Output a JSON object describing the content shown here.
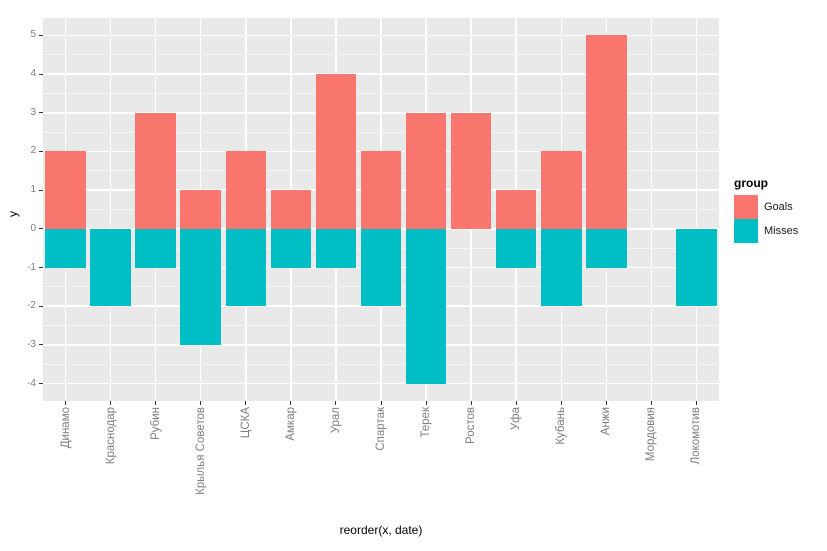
{
  "chart_data": {
    "type": "bar",
    "title": "",
    "xlabel": "reorder(x, date)",
    "ylabel": "y",
    "categories": [
      "Динамо",
      "Краснодар",
      "Рубин",
      "Крылья Советов",
      "ЦСКА",
      "Амкар",
      "Урал",
      "Спартак",
      "Терек",
      "Ростов",
      "Уфа",
      "Кубань",
      "Анжи",
      "Мордовия",
      "Локомотив"
    ],
    "series": [
      {
        "name": "Goals",
        "color": "#F8766D",
        "values": [
          2,
          0,
          3,
          1,
          2,
          1,
          4,
          2,
          3,
          3,
          1,
          2,
          5,
          0,
          0
        ]
      },
      {
        "name": "Misses",
        "color": "#00BFC4",
        "values": [
          -1,
          -2,
          -1,
          -3,
          -2,
          -1,
          -1,
          -2,
          -4,
          0,
          -1,
          -2,
          -1,
          0,
          -2
        ]
      }
    ],
    "y_ticks": [
      5,
      4,
      3,
      2,
      1,
      0,
      -1,
      -2,
      -3,
      -4
    ],
    "y_minor_ticks": [
      4.5,
      3.5,
      2.5,
      1.5,
      0.5,
      -0.5,
      -1.5,
      -2.5,
      -3.5
    ],
    "ylim": [
      -4.45,
      5.45
    ],
    "grid": true,
    "legend_position": "right",
    "panel_bg": "#E9E9E9",
    "grid_color": "#FFFFFF",
    "bar_width_ratio": 0.9
  },
  "legend": {
    "title": "group",
    "items": [
      {
        "label": "Goals",
        "color": "#F8766D"
      },
      {
        "label": "Misses",
        "color": "#00BFC4"
      }
    ]
  },
  "axes": {
    "x_title": "reorder(x, date)",
    "y_title": "y"
  }
}
